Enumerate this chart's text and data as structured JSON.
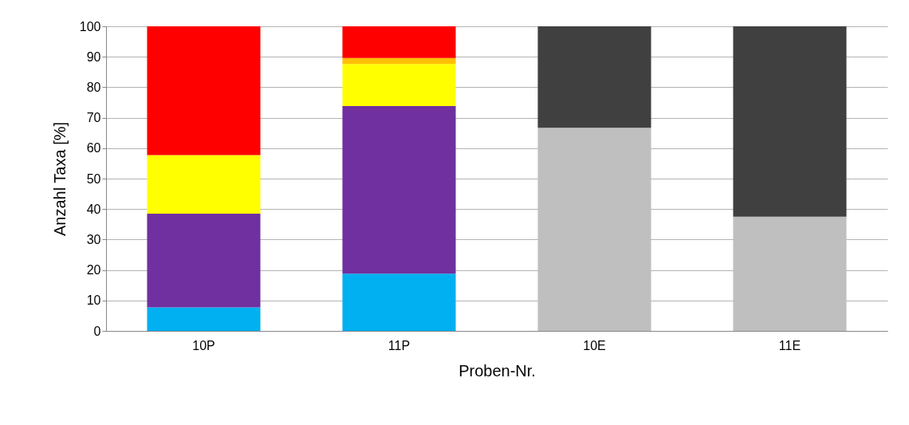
{
  "chart_data": {
    "type": "bar",
    "stacked": true,
    "xlabel": "Proben-Nr.",
    "ylabel": "Anzahl Taxa [%]",
    "categories": [
      "10P",
      "11P",
      "10E",
      "11E"
    ],
    "series": [
      {
        "color": "#00b0f0",
        "values": [
          7.7,
          18.8,
          null,
          null
        ]
      },
      {
        "color": "#7030a0",
        "values": [
          30.8,
          55,
          null,
          null
        ]
      },
      {
        "color": "#ffff00",
        "values": [
          19.2,
          13.8,
          null,
          null
        ]
      },
      {
        "color": "#ffc000",
        "values": [
          null,
          2.0,
          null,
          null
        ]
      },
      {
        "color": "#ff0000",
        "values": [
          42.3,
          10.4,
          null,
          null
        ]
      },
      {
        "color": "#bfbfbf",
        "values": [
          null,
          null,
          66.7,
          37.5
        ]
      },
      {
        "color": "#404040",
        "values": [
          null,
          null,
          33.3,
          62.5
        ]
      }
    ],
    "ylim": [
      0,
      100
    ],
    "yticks": [
      0,
      10,
      20,
      30,
      40,
      50,
      60,
      70,
      80,
      90,
      100
    ],
    "grid": "y",
    "legend": false
  }
}
